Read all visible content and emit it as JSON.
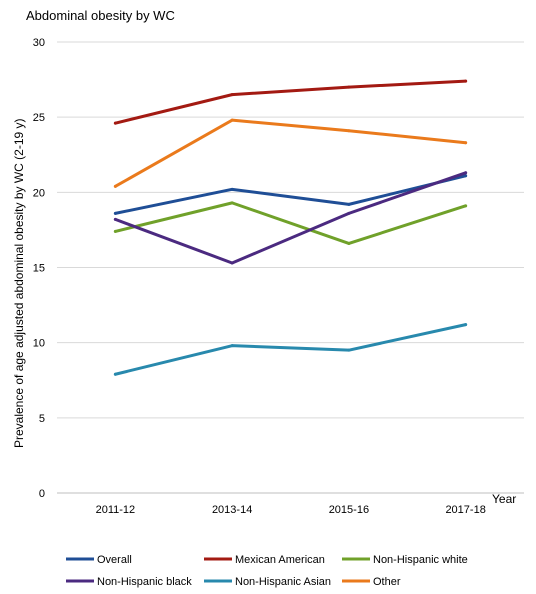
{
  "chart_data": {
    "type": "line",
    "title": "Abdominal  obesity by WC",
    "xlabel": "Year",
    "ylabel": "Prevalence of age adjusted abdominal obesity by WC (2-19 y)",
    "categories": [
      "2011-12",
      "2013-14",
      "2015-16",
      "2017-18"
    ],
    "ylim": [
      0,
      30
    ],
    "yticks": [
      0,
      5,
      10,
      15,
      20,
      25,
      30
    ],
    "grid": true,
    "legend_position": "bottom",
    "series": [
      {
        "name": "Overall",
        "color": "#1f4e96",
        "values": [
          18.6,
          20.2,
          19.2,
          21.1
        ]
      },
      {
        "name": "Mexican American",
        "color": "#a31a12",
        "values": [
          24.6,
          26.5,
          27.0,
          27.4
        ]
      },
      {
        "name": "Non-Hispanic white",
        "color": "#70a12a",
        "values": [
          17.4,
          19.3,
          16.6,
          19.1
        ]
      },
      {
        "name": "Non-Hispanic black",
        "color": "#4b2a80",
        "values": [
          18.2,
          15.3,
          18.6,
          21.3
        ]
      },
      {
        "name": "Non-Hispanic Asian",
        "color": "#2889ad",
        "values": [
          7.9,
          9.8,
          9.5,
          11.2
        ]
      },
      {
        "name": "Other",
        "color": "#ea7a1c",
        "values": [
          20.4,
          24.8,
          24.1,
          23.3
        ]
      }
    ]
  }
}
